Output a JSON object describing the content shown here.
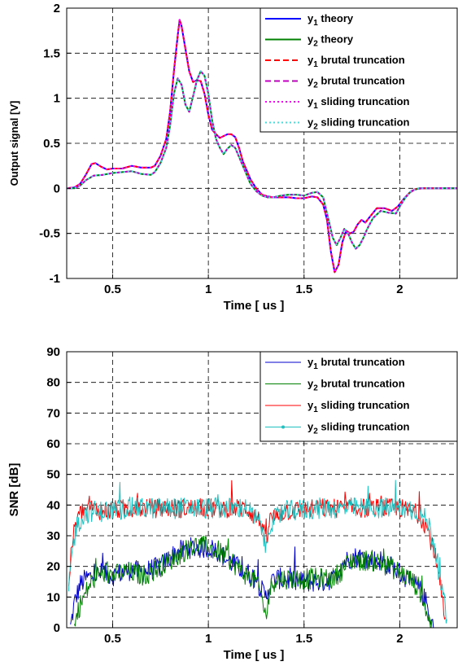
{
  "chart_data": [
    {
      "type": "line",
      "title": "",
      "xlabel": "Time [ us ]",
      "ylabel": "Output signal [V]",
      "xlim": [
        0.26,
        2.3
      ],
      "ylim": [
        -1,
        2
      ],
      "xticks": [
        0.5,
        1,
        1.5,
        2
      ],
      "xtick_labels": [
        "0.5",
        "1",
        "1.5",
        "2"
      ],
      "yticks": [
        -1,
        -0.5,
        0,
        0.5,
        1,
        1.5,
        2
      ],
      "ytick_labels": [
        "-1",
        "-0.5",
        "0",
        "0.5",
        "1",
        "1.5",
        "2"
      ],
      "grid": true,
      "legend_position": "top-right",
      "series": [
        {
          "name": "y1 theory",
          "name_main": "y",
          "name_sub": "1",
          "name_rest": " theory",
          "color": "#0000ff",
          "style": "solid",
          "width": 2,
          "x": [
            0.26,
            0.3,
            0.33,
            0.36,
            0.39,
            0.41,
            0.44,
            0.47,
            0.5,
            0.55,
            0.6,
            0.65,
            0.7,
            0.72,
            0.75,
            0.78,
            0.8,
            0.82,
            0.84,
            0.85,
            0.86,
            0.88,
            0.9,
            0.92,
            0.94,
            0.96,
            0.98,
            1.0,
            1.02,
            1.04,
            1.06,
            1.08,
            1.1,
            1.12,
            1.14,
            1.16,
            1.18,
            1.2,
            1.22,
            1.25,
            1.28,
            1.31,
            1.34,
            1.38,
            1.42,
            1.46,
            1.5,
            1.54,
            1.57,
            1.6,
            1.62,
            1.64,
            1.66,
            1.68,
            1.7,
            1.72,
            1.74,
            1.76,
            1.78,
            1.8,
            1.82,
            1.85,
            1.88,
            1.92,
            1.96,
            1.99,
            2.02,
            2.05,
            2.08,
            2.12,
            2.16,
            2.2,
            2.25,
            2.3
          ],
          "y": [
            0,
            0.01,
            0.05,
            0.15,
            0.27,
            0.28,
            0.24,
            0.21,
            0.22,
            0.22,
            0.25,
            0.23,
            0.23,
            0.25,
            0.36,
            0.55,
            0.85,
            1.3,
            1.7,
            1.87,
            1.8,
            1.55,
            1.3,
            1.18,
            1.2,
            1.19,
            1.05,
            0.82,
            0.65,
            0.6,
            0.56,
            0.58,
            0.6,
            0.6,
            0.57,
            0.45,
            0.3,
            0.2,
            0.1,
            0.0,
            -0.07,
            -0.09,
            -0.1,
            -0.1,
            -0.1,
            -0.11,
            -0.11,
            -0.09,
            -0.1,
            -0.18,
            -0.35,
            -0.7,
            -0.93,
            -0.85,
            -0.6,
            -0.47,
            -0.5,
            -0.48,
            -0.4,
            -0.35,
            -0.38,
            -0.3,
            -0.22,
            -0.22,
            -0.25,
            -0.2,
            -0.12,
            -0.05,
            -0.01,
            0.0,
            0.0,
            0.0,
            0.0,
            0.0
          ]
        },
        {
          "name": "y2 theory",
          "name_main": "y",
          "name_sub": "2",
          "name_rest": " theory",
          "color": "#008000",
          "style": "solid",
          "width": 2,
          "x": [
            0.26,
            0.3,
            0.33,
            0.36,
            0.4,
            0.45,
            0.5,
            0.55,
            0.6,
            0.65,
            0.7,
            0.72,
            0.75,
            0.78,
            0.8,
            0.82,
            0.84,
            0.86,
            0.88,
            0.9,
            0.92,
            0.94,
            0.96,
            0.98,
            1.0,
            1.02,
            1.04,
            1.06,
            1.08,
            1.1,
            1.12,
            1.14,
            1.16,
            1.18,
            1.2,
            1.22,
            1.25,
            1.28,
            1.31,
            1.34,
            1.38,
            1.42,
            1.46,
            1.5,
            1.54,
            1.57,
            1.6,
            1.62,
            1.65,
            1.67,
            1.69,
            1.71,
            1.73,
            1.75,
            1.77,
            1.79,
            1.81,
            1.83,
            1.86,
            1.9,
            1.94,
            1.98,
            2.0,
            2.03,
            2.06,
            2.1,
            2.14,
            2.18,
            2.23,
            2.3
          ],
          "y": [
            0,
            0.0,
            0.03,
            0.09,
            0.14,
            0.15,
            0.17,
            0.18,
            0.19,
            0.16,
            0.15,
            0.18,
            0.28,
            0.45,
            0.7,
            1.05,
            1.22,
            1.15,
            0.93,
            0.85,
            1.02,
            1.2,
            1.3,
            1.25,
            1.05,
            0.75,
            0.55,
            0.45,
            0.38,
            0.44,
            0.48,
            0.45,
            0.35,
            0.25,
            0.15,
            0.05,
            -0.03,
            -0.08,
            -0.1,
            -0.1,
            -0.08,
            -0.07,
            -0.07,
            -0.08,
            -0.05,
            -0.04,
            -0.1,
            -0.28,
            -0.55,
            -0.63,
            -0.55,
            -0.45,
            -0.5,
            -0.6,
            -0.67,
            -0.63,
            -0.55,
            -0.45,
            -0.33,
            -0.25,
            -0.27,
            -0.28,
            -0.2,
            -0.1,
            -0.03,
            0.0,
            0.0,
            0.0,
            0.0,
            0.0
          ]
        },
        {
          "name": "y1 brutal truncation",
          "name_main": "y",
          "name_sub": "1",
          "name_rest": " brutal truncation",
          "color": "#ff0000",
          "style": "dashed",
          "width": 2,
          "based_on": 0
        },
        {
          "name": "y2 brutal truncation",
          "name_main": "y",
          "name_sub": "2",
          "name_rest": " brutal truncation",
          "color": "#bf00bf",
          "style": "dashed",
          "width": 2,
          "based_on": 1
        },
        {
          "name": "y1 sliding truncation",
          "name_main": "y",
          "name_sub": "1",
          "name_rest": " sliding truncation",
          "color": "#ff00ff",
          "style": "dotted",
          "width": 2,
          "based_on": 0
        },
        {
          "name": "y2 sliding truncation",
          "name_main": "y",
          "name_sub": "2",
          "name_rest": " sliding truncation",
          "color": "#40e0e0",
          "style": "dotted",
          "width": 2,
          "based_on": 1
        }
      ]
    },
    {
      "type": "line",
      "title": "",
      "xlabel": "Time [ us ]",
      "ylabel": "SNR [dB]",
      "xlim": [
        0.26,
        2.3
      ],
      "ylim": [
        0,
        90
      ],
      "xticks": [
        0.5,
        1,
        1.5,
        2
      ],
      "xtick_labels": [
        "0.5",
        "1",
        "1.5",
        "2"
      ],
      "yticks": [
        0,
        10,
        20,
        30,
        40,
        50,
        60,
        70,
        80,
        90
      ],
      "ytick_labels": [
        "0",
        "10",
        "20",
        "30",
        "40",
        "50",
        "60",
        "70",
        "80",
        "90"
      ],
      "grid": true,
      "legend_position": "top-right",
      "series": [
        {
          "name": "y1 brutal truncation",
          "name_main": "y",
          "name_sub": "1",
          "name_rest": " brutal truncation",
          "color": "#0000cc",
          "style": "solid",
          "width": 1,
          "x": [
            0.28,
            0.3,
            0.33,
            0.36,
            0.4,
            0.45,
            0.5,
            0.55,
            0.6,
            0.65,
            0.7,
            0.75,
            0.8,
            0.85,
            0.9,
            0.95,
            1.0,
            1.05,
            1.1,
            1.15,
            1.2,
            1.25,
            1.28,
            1.3,
            1.32,
            1.35,
            1.4,
            1.45,
            1.5,
            1.55,
            1.6,
            1.65,
            1.7,
            1.75,
            1.8,
            1.85,
            1.9,
            1.95,
            2.0,
            2.05,
            2.1,
            2.14,
            2.16,
            2.18
          ],
          "y": [
            0,
            8,
            14,
            16,
            17,
            18,
            17,
            18,
            19,
            18,
            19,
            20,
            23,
            25,
            26,
            26,
            26,
            25,
            22,
            20,
            18,
            16,
            12,
            10,
            14,
            16,
            16,
            15,
            15,
            15,
            15,
            16,
            21,
            23,
            23,
            22,
            22,
            20,
            18,
            15,
            13,
            8,
            3,
            0
          ],
          "jitter": 3.5
        },
        {
          "name": "y2 brutal truncation",
          "name_main": "y",
          "name_sub": "2",
          "name_rest": " brutal truncation",
          "color": "#008000",
          "style": "solid",
          "width": 1,
          "x": [
            0.3,
            0.32,
            0.35,
            0.38,
            0.42,
            0.46,
            0.5,
            0.55,
            0.6,
            0.65,
            0.7,
            0.75,
            0.8,
            0.85,
            0.9,
            0.95,
            1.0,
            1.05,
            1.1,
            1.15,
            1.2,
            1.25,
            1.28,
            1.3,
            1.32,
            1.35,
            1.4,
            1.45,
            1.5,
            1.55,
            1.6,
            1.65,
            1.7,
            1.75,
            1.8,
            1.85,
            1.9,
            1.95,
            2.0,
            2.05,
            2.1,
            2.13,
            2.15,
            2.17
          ],
          "y": [
            0,
            6,
            10,
            14,
            17,
            18,
            17,
            18,
            18,
            17,
            18,
            20,
            22,
            24,
            26,
            27,
            26,
            25,
            23,
            20,
            17,
            15,
            10,
            3,
            12,
            16,
            16,
            16,
            16,
            16,
            16,
            16,
            19,
            22,
            22,
            22,
            21,
            20,
            18,
            16,
            13,
            8,
            3,
            0
          ],
          "jitter": 3.5
        },
        {
          "name": "y1 sliding truncation",
          "name_main": "y",
          "name_sub": "1",
          "name_rest": " sliding truncation",
          "color": "#ff0000",
          "style": "solid",
          "width": 1,
          "x": [
            0.27,
            0.29,
            0.31,
            0.34,
            0.38,
            0.45,
            0.6,
            0.8,
            1.0,
            1.2,
            1.28,
            1.3,
            1.32,
            1.4,
            1.6,
            1.8,
            2.0,
            2.1,
            2.14,
            2.18,
            2.2,
            2.22,
            2.24
          ],
          "y": [
            15,
            28,
            35,
            38,
            39,
            38,
            39,
            39,
            39,
            39,
            34,
            27,
            35,
            38,
            39,
            39,
            39,
            37,
            33,
            25,
            18,
            10,
            0
          ],
          "jitter": 3.2
        },
        {
          "name": "y2 sliding truncation",
          "name_main": "y",
          "name_sub": "2",
          "name_rest": " sliding truncation",
          "color": "#20c0c0",
          "style": "solid",
          "width": 1,
          "marker_in_legend": true,
          "x": [
            0.27,
            0.29,
            0.31,
            0.34,
            0.38,
            0.45,
            0.6,
            0.8,
            1.0,
            1.2,
            1.28,
            1.3,
            1.32,
            1.4,
            1.6,
            1.8,
            2.0,
            2.1,
            2.15,
            2.18,
            2.2,
            2.22,
            2.24,
            2.25
          ],
          "y": [
            12,
            25,
            33,
            36,
            38,
            38,
            39,
            39,
            39,
            39,
            33,
            25,
            34,
            38,
            39,
            39,
            39,
            38,
            34,
            27,
            20,
            12,
            5,
            0
          ],
          "jitter": 3.5
        }
      ]
    }
  ]
}
